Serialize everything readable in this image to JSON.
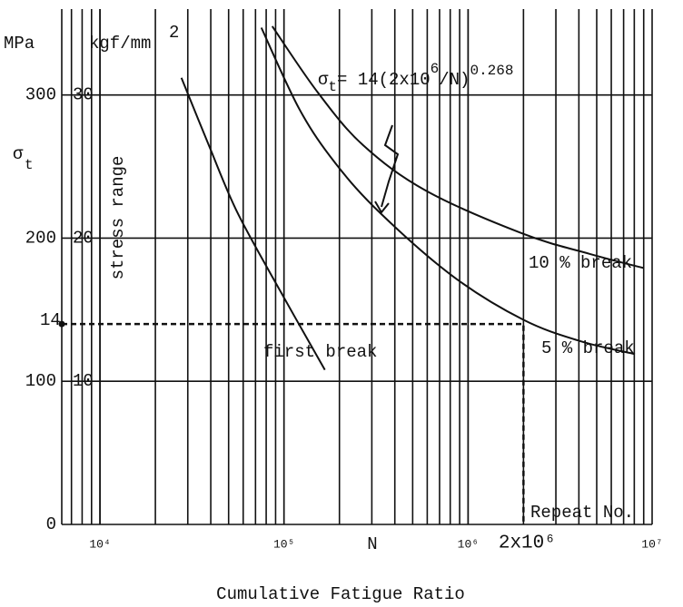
{
  "chart_data": {
    "type": "line",
    "y_unit": "MPa",
    "y2_unit": "kgf/mm",
    "y2_unit_sup": "2",
    "y_symbol": "σ",
    "y_symbol_sub": "t",
    "y_label": "stress range",
    "x_label": "N",
    "x_note": "Repeat No.",
    "title": "Cumulative Fatigue Ratio",
    "formula": [
      "σ",
      "t",
      "= 14(2x10",
      "6",
      "/N)",
      "0.268"
    ],
    "log_x": true,
    "xlim": [
      6200,
      10000000
    ],
    "xticks": [
      {
        "value": 10000,
        "label": "10⁴"
      },
      {
        "value": 100000,
        "label": "10⁵"
      },
      {
        "value": 1000000,
        "label": "10⁶"
      },
      {
        "value": 10000000,
        "label": "10⁷"
      }
    ],
    "ylim": [
      0,
      360
    ],
    "yticks": [
      0,
      100,
      200,
      300
    ],
    "y2lim": [
      0,
      36
    ],
    "y2ticks": [
      10,
      20,
      30
    ],
    "reference": {
      "y2": 14,
      "x": 2000000,
      "x_label": "2x10⁶"
    },
    "grid": true,
    "series": [
      {
        "name": "first break",
        "color": "#111111",
        "x": [
          27700,
          39000,
          54800,
          86300,
          166700
        ],
        "values": [
          312,
          265,
          220,
          173,
          108
        ]
      },
      {
        "name": "5 % break",
        "color": "#111111",
        "x": [
          75300,
          121300,
          191000,
          336500,
          833700,
          1995000,
          4083000,
          8054000
        ],
        "values": [
          347,
          290,
          252,
          217,
          173,
          143,
          128,
          119
        ]
      },
      {
        "name": "10 % break",
        "color": "#111111",
        "x": [
          86300,
          152100,
          268500,
          592900,
          1995000,
          4571000,
          9036000
        ],
        "values": [
          348,
          302,
          265,
          233,
          203,
          189,
          179
        ]
      }
    ]
  }
}
